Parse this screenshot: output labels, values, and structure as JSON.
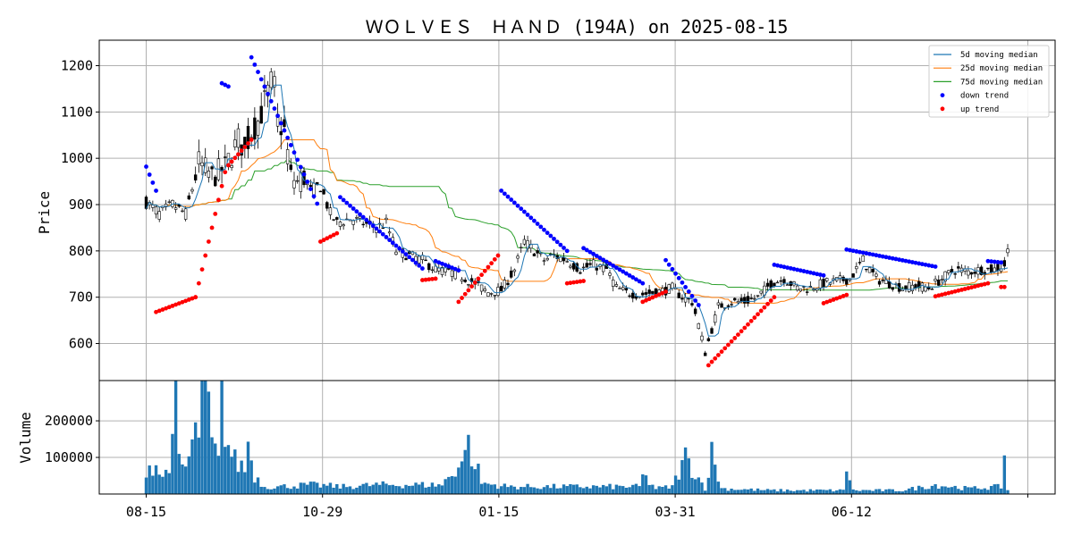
{
  "chart_data": {
    "type": "candlestick",
    "title": "ＷＯＬＶＥＳ　ＨＡＮＤ (194A) on 2025-08-15",
    "xlabel": "",
    "ylabel": "Price",
    "volume_label": "Volume",
    "ylim": [
      520,
      1255
    ],
    "volume_ylim": [
      0,
      310000
    ],
    "x_ticks": [
      "08-15",
      "10-29",
      "01-15",
      "03-31",
      "06-12",
      ""
    ],
    "y_ticks": [
      600,
      700,
      800,
      900,
      1000,
      1100,
      1200
    ],
    "volume_ticks": [
      100000,
      200000
    ],
    "grid": true,
    "legend_position": "top-right",
    "legend": [
      {
        "label": " 5d moving median",
        "color": "#1f77b4",
        "kind": "line"
      },
      {
        "label": "25d moving median",
        "color": "#ff7f0e",
        "kind": "line"
      },
      {
        "label": "75d moving median",
        "color": "#2ca02c",
        "kind": "line"
      },
      {
        "label": "down trend",
        "color": "#0000ff",
        "kind": "dot"
      },
      {
        "label": "up trend",
        "color": "#ff0000",
        "kind": "dot"
      }
    ],
    "price_anchors": [
      [
        0,
        905
      ],
      [
        4,
        880
      ],
      [
        8,
        900
      ],
      [
        12,
        880
      ],
      [
        16,
        990
      ],
      [
        20,
        960
      ],
      [
        24,
        980
      ],
      [
        26,
        1010
      ],
      [
        28,
        1040
      ],
      [
        30,
        1020
      ],
      [
        32,
        1060
      ],
      [
        34,
        1080
      ],
      [
        36,
        1120
      ],
      [
        38,
        1160
      ],
      [
        39,
        1150
      ],
      [
        40,
        1080
      ],
      [
        42,
        1060
      ],
      [
        44,
        960
      ],
      [
        46,
        950
      ],
      [
        48,
        960
      ],
      [
        50,
        930
      ],
      [
        53,
        940
      ],
      [
        56,
        880
      ],
      [
        58,
        860
      ],
      [
        62,
        870
      ],
      [
        66,
        860
      ],
      [
        70,
        850
      ],
      [
        73,
        860
      ],
      [
        76,
        800
      ],
      [
        80,
        790
      ],
      [
        84,
        780
      ],
      [
        88,
        760
      ],
      [
        92,
        755
      ],
      [
        96,
        745
      ],
      [
        100,
        730
      ],
      [
        104,
        710
      ],
      [
        108,
        715
      ],
      [
        112,
        760
      ],
      [
        115,
        820
      ],
      [
        118,
        800
      ],
      [
        121,
        780
      ],
      [
        124,
        790
      ],
      [
        128,
        780
      ],
      [
        132,
        760
      ],
      [
        136,
        770
      ],
      [
        140,
        760
      ],
      [
        143,
        720
      ],
      [
        146,
        710
      ],
      [
        150,
        705
      ],
      [
        154,
        710
      ],
      [
        158,
        715
      ],
      [
        160,
        720
      ],
      [
        163,
        700
      ],
      [
        166,
        690
      ],
      [
        168,
        640
      ],
      [
        170,
        580
      ],
      [
        172,
        630
      ],
      [
        174,
        680
      ],
      [
        178,
        690
      ],
      [
        182,
        690
      ],
      [
        186,
        700
      ],
      [
        190,
        730
      ],
      [
        194,
        740
      ],
      [
        198,
        720
      ],
      [
        202,
        720
      ],
      [
        206,
        730
      ],
      [
        210,
        735
      ],
      [
        214,
        740
      ],
      [
        218,
        780
      ],
      [
        222,
        740
      ],
      [
        226,
        730
      ],
      [
        230,
        720
      ],
      [
        234,
        725
      ],
      [
        238,
        720
      ],
      [
        242,
        740
      ],
      [
        246,
        760
      ],
      [
        250,
        755
      ],
      [
        254,
        760
      ],
      [
        258,
        760
      ],
      [
        261,
        770
      ],
      [
        263,
        830
      ]
    ],
    "volume_anchors": [
      [
        0,
        75000
      ],
      [
        3,
        80000
      ],
      [
        5,
        40000
      ],
      [
        8,
        120000
      ],
      [
        9,
        250000
      ],
      [
        10,
        90000
      ],
      [
        12,
        70000
      ],
      [
        14,
        130000
      ],
      [
        16,
        180000
      ],
      [
        17,
        270000
      ],
      [
        19,
        240000
      ],
      [
        20,
        130000
      ],
      [
        22,
        90000
      ],
      [
        23,
        250000
      ],
      [
        25,
        130000
      ],
      [
        27,
        90000
      ],
      [
        30,
        70000
      ],
      [
        31,
        140000
      ],
      [
        33,
        50000
      ],
      [
        36,
        20000
      ],
      [
        40,
        20000
      ],
      [
        50,
        25000
      ],
      [
        60,
        20000
      ],
      [
        70,
        25000
      ],
      [
        80,
        25000
      ],
      [
        90,
        25000
      ],
      [
        97,
        100000
      ],
      [
        98,
        235000
      ],
      [
        99,
        60000
      ],
      [
        100,
        95000
      ],
      [
        102,
        30000
      ],
      [
        110,
        20000
      ],
      [
        120,
        20000
      ],
      [
        130,
        20000
      ],
      [
        150,
        20000
      ],
      [
        151,
        50000
      ],
      [
        155,
        15000
      ],
      [
        160,
        20000
      ],
      [
        164,
        100000
      ],
      [
        170,
        15000
      ],
      [
        172,
        110000
      ],
      [
        175,
        15000
      ],
      [
        190,
        10000
      ],
      [
        212,
        10000
      ],
      [
        213,
        75000
      ],
      [
        215,
        10000
      ],
      [
        230,
        10000
      ],
      [
        240,
        25000
      ],
      [
        250,
        15000
      ],
      [
        260,
        20000
      ],
      [
        261,
        110000
      ],
      [
        262,
        10000
      ]
    ],
    "segments": [
      {
        "trend": "down",
        "start": 0,
        "end": 3,
        "from": 982,
        "to": 930
      },
      {
        "trend": "up",
        "start": 3,
        "end": 15,
        "from": 668,
        "to": 700
      },
      {
        "trend": "up",
        "start": 15,
        "end": 24,
        "from": 700,
        "to": 970
      },
      {
        "trend": "up",
        "start": 25,
        "end": 32,
        "from": 985,
        "to": 1040
      },
      {
        "trend": "down",
        "start": 23,
        "end": 25,
        "from": 1162,
        "to": 1155
      },
      {
        "trend": "down",
        "start": 32,
        "end": 52,
        "from": 1218,
        "to": 902
      },
      {
        "trend": "up",
        "start": 53,
        "end": 58,
        "from": 820,
        "to": 838
      },
      {
        "trend": "down",
        "start": 59,
        "end": 84,
        "from": 916,
        "to": 762
      },
      {
        "trend": "up",
        "start": 84,
        "end": 88,
        "from": 737,
        "to": 740
      },
      {
        "trend": "down",
        "start": 88,
        "end": 95,
        "from": 778,
        "to": 758
      },
      {
        "trend": "up",
        "start": 95,
        "end": 107,
        "from": 690,
        "to": 790
      },
      {
        "trend": "down",
        "start": 108,
        "end": 128,
        "from": 930,
        "to": 800
      },
      {
        "trend": "up",
        "start": 128,
        "end": 133,
        "from": 730,
        "to": 735
      },
      {
        "trend": "down",
        "start": 133,
        "end": 151,
        "from": 806,
        "to": 730
      },
      {
        "trend": "up",
        "start": 151,
        "end": 158,
        "from": 690,
        "to": 712
      },
      {
        "trend": "down",
        "start": 158,
        "end": 168,
        "from": 780,
        "to": 683
      },
      {
        "trend": "up",
        "start": 171,
        "end": 191,
        "from": 553,
        "to": 700
      },
      {
        "trend": "down",
        "start": 191,
        "end": 206,
        "from": 770,
        "to": 747
      },
      {
        "trend": "up",
        "start": 206,
        "end": 213,
        "from": 687,
        "to": 705
      },
      {
        "trend": "down",
        "start": 213,
        "end": 240,
        "from": 803,
        "to": 766
      },
      {
        "trend": "up",
        "start": 240,
        "end": 256,
        "from": 702,
        "to": 730
      },
      {
        "trend": "down",
        "start": 256,
        "end": 260,
        "from": 778,
        "to": 775
      },
      {
        "trend": "up",
        "start": 260,
        "end": 261,
        "from": 722,
        "to": 722
      }
    ],
    "n_days": 263
  }
}
